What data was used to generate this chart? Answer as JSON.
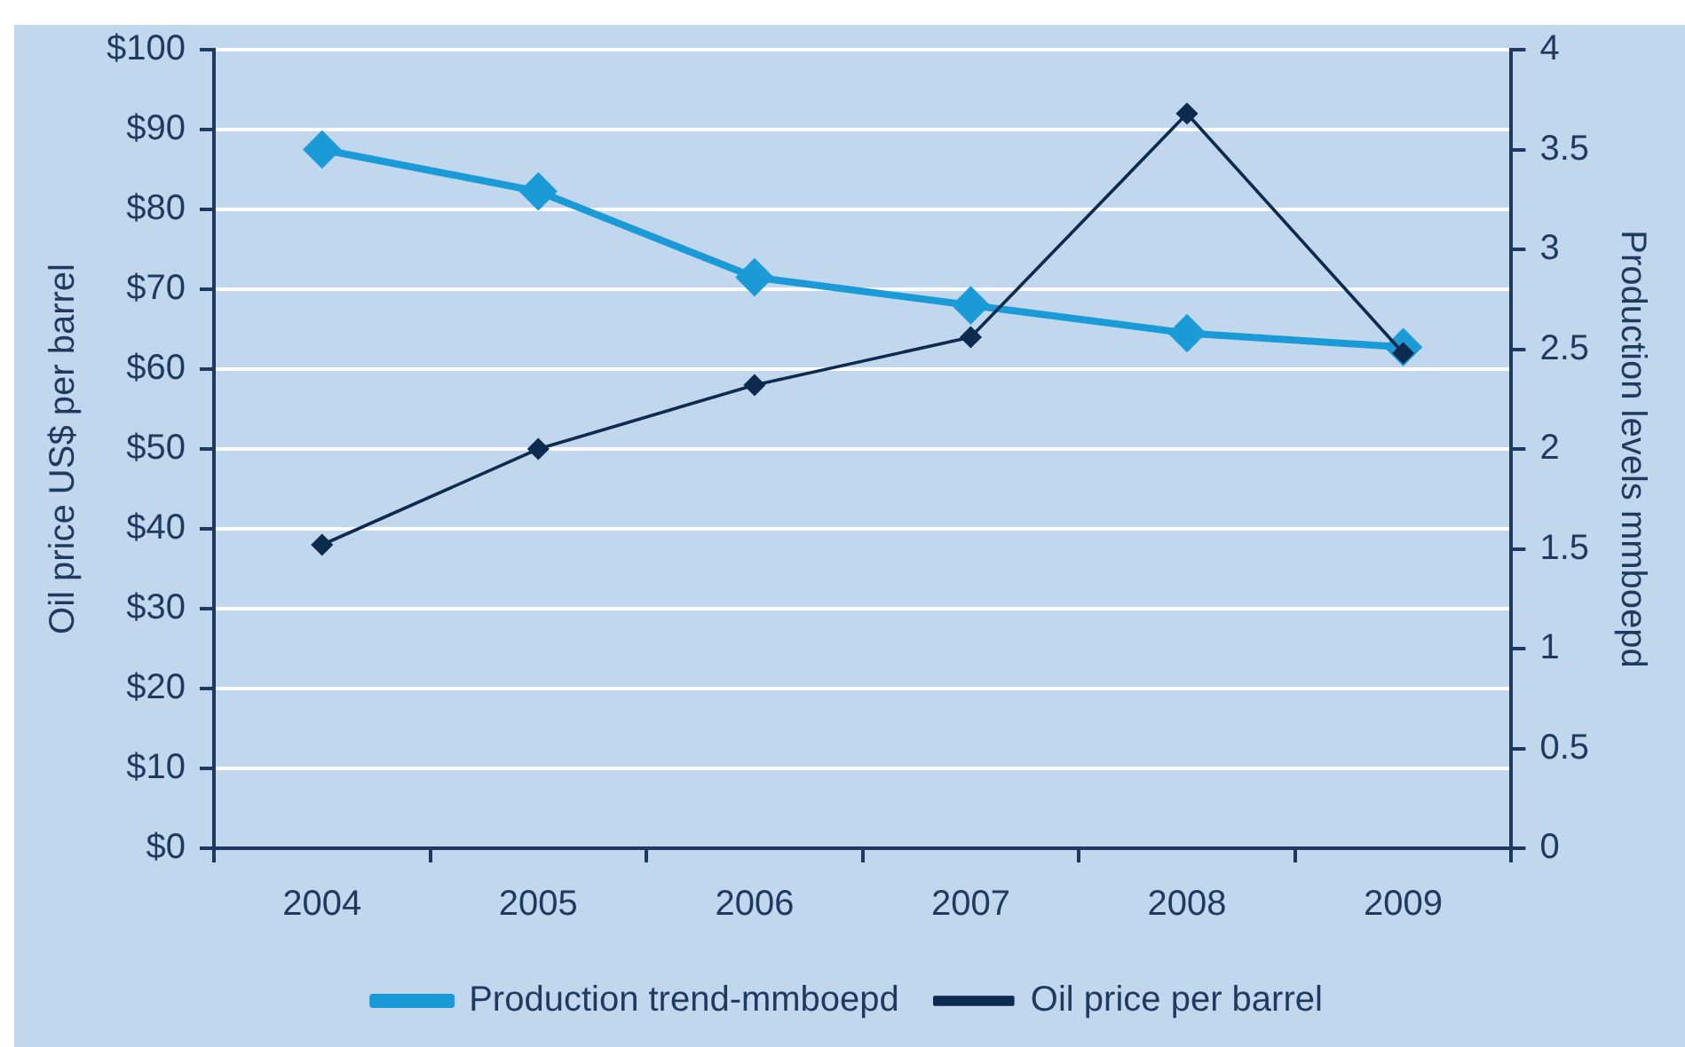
{
  "chart_data": {
    "type": "line",
    "categories": [
      "2004",
      "2005",
      "2006",
      "2007",
      "2008",
      "2009"
    ],
    "series": [
      {
        "name": "Production trend-mmboepd",
        "color": "#1a9ad6",
        "axis": "y2",
        "values": [
          3.5,
          3.29,
          2.86,
          2.72,
          2.58,
          2.51
        ]
      },
      {
        "name": "Oil price per barrel",
        "color": "#0d2b4e",
        "values": [
          38,
          50,
          58,
          64,
          92,
          62
        ]
      }
    ],
    "ylabel": "Oil price US$ per barrel",
    "y2label": "Production levels mmboepd",
    "ylim": [
      0,
      100
    ],
    "yticks": [
      {
        "value": 0,
        "label": "$0"
      },
      {
        "value": 10,
        "label": "$10"
      },
      {
        "value": 20,
        "label": "$20"
      },
      {
        "value": 30,
        "label": "$30"
      },
      {
        "value": 40,
        "label": "$40"
      },
      {
        "value": 50,
        "label": "$50"
      },
      {
        "value": 60,
        "label": "$60"
      },
      {
        "value": 70,
        "label": "$70"
      },
      {
        "value": 80,
        "label": "$80"
      },
      {
        "value": 90,
        "label": "$90"
      },
      {
        "value": 100,
        "label": "$100"
      }
    ],
    "y2lim": [
      0,
      4
    ],
    "y2ticks": [
      0,
      0.5,
      1,
      1.5,
      2,
      2.5,
      3,
      3.5,
      4
    ],
    "grid": "y",
    "legend": "bottom",
    "marker": "diamond"
  }
}
